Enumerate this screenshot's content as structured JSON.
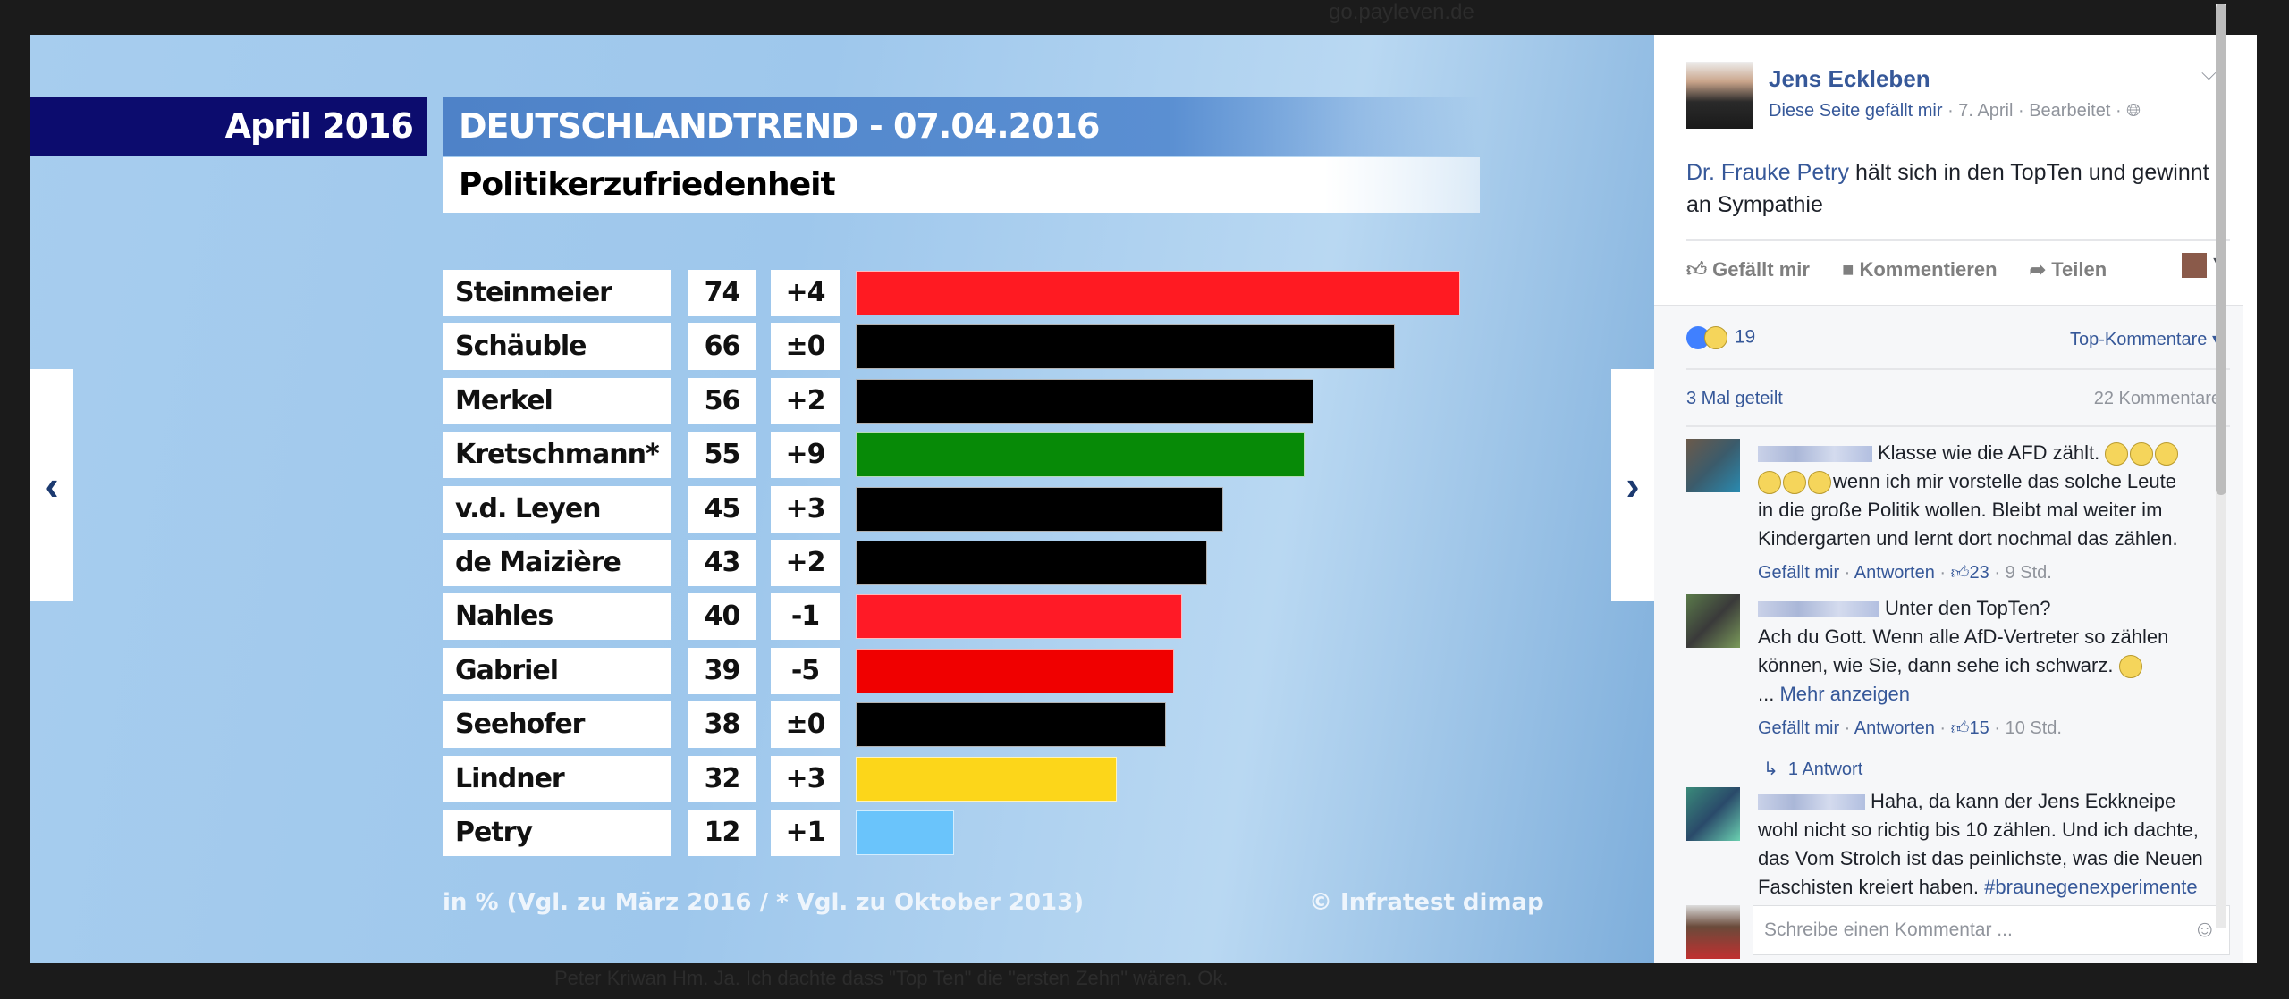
{
  "background": {
    "top_link": "go.payleven.de",
    "bottom_comment": "Peter Kriwan Hm. Ja. Ich dachte dass \"Top Ten\" die \"ersten Zehn\" wären. Ok."
  },
  "chart_data": {
    "type": "bar",
    "orientation": "horizontal",
    "header_left": "April 2016",
    "title": "DEUTSCHLANDTREND - 07.04.2016",
    "subtitle": "Politikerzufriedenheit",
    "categories": [
      "Steinmeier",
      "Schäuble",
      "Merkel",
      "Kretschmann*",
      "v.d. Leyen",
      "de Maizière",
      "Nahles",
      "Gabriel",
      "Seehofer",
      "Lindner",
      "Petry"
    ],
    "values": [
      74,
      66,
      56,
      55,
      45,
      43,
      40,
      39,
      38,
      32,
      12
    ],
    "changes": [
      "+4",
      "±0",
      "+2",
      "+9",
      "+3",
      "+2",
      "-1",
      "-5",
      "±0",
      "+3",
      "+1"
    ],
    "colors": [
      "#ff1a22",
      "#000000",
      "#000000",
      "#078a07",
      "#000000",
      "#000000",
      "#ff1a26",
      "#f00000",
      "#000000",
      "#fcd61a",
      "#6ac4fb"
    ],
    "footnote": "in % (Vgl. zu März 2016 / * Vgl. zu Oktober 2013)",
    "source": "© Infratest dimap"
  },
  "post": {
    "author": "Jens Eckleben",
    "page_like": "Diese Seite gefällt mir",
    "meta": " · 7. April · Bearbeitet · ",
    "mention": "Dr. Frauke Petry",
    "text_line1": " hält sich in den TopTen und gewinnt",
    "text_line2": "an Sympathie",
    "actions": {
      "like": "Gefällt mir",
      "comment": "Kommentieren",
      "share": "Teilen"
    },
    "reactions_count": "19",
    "sort": "Top-Kommentare",
    "shares": "3 Mal geteilt",
    "comments_count": "22 Kommentare"
  },
  "comments": [
    {
      "lines": [
        "Klasse wie die AFD zählt.",
        "wenn ich mir vorstelle das solche Leute",
        "in die große Politik wollen. Bleibt mal weiter im",
        "Kindergarten und lernt dort nochmal das zählen."
      ],
      "like": "Gefällt mir",
      "reply": "Antworten",
      "likes": "23",
      "time": "9 Std."
    },
    {
      "lines": [
        "Unter den TopTen?",
        "Ach du Gott. Wenn alle AfD-Vertreter so zählen",
        "können, wie Sie, dann sehe ich schwarz."
      ],
      "more": "Mehr anzeigen",
      "like": "Gefällt mir",
      "reply": "Antworten",
      "likes": "15",
      "time": "10 Std.",
      "replies": "1 Antwort"
    },
    {
      "lines": [
        "Haha, da kann der Jens Eckkneipe",
        "wohl nicht so richtig bis 10 zählen. Und ich dachte,",
        "das Vom Strolch ist das peinlichste, was die Neuen",
        "Faschisten kreiert haben. "
      ],
      "hashtag": "#braunegenexperimente"
    }
  ],
  "composer": {
    "placeholder": "Schreibe einen Kommentar ..."
  }
}
